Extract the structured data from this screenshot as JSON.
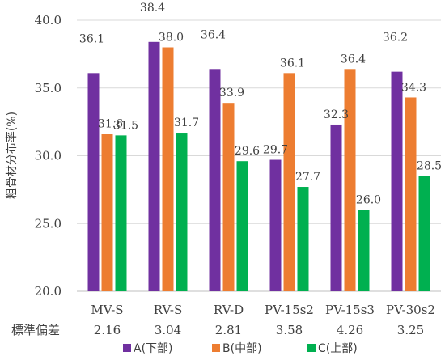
{
  "chart_data": {
    "type": "bar",
    "title": "",
    "xlabel": "",
    "ylabel": "粗骨材分布率(%)",
    "ylim": [
      20.0,
      40.0
    ],
    "yticks": [
      "20.0",
      "25.0",
      "30.0",
      "35.0",
      "40.0"
    ],
    "ytick_values": [
      20,
      25,
      30,
      35,
      40
    ],
    "categories": [
      "MV-S",
      "RV-S",
      "RV-D",
      "PV-15s2",
      "PV-15s3",
      "PV-30s2"
    ],
    "sub_row_title": "標準偏差",
    "sub_row_values": [
      "2.16",
      "3.04",
      "2.81",
      "3.58",
      "4.26",
      "3.25"
    ],
    "series": [
      {
        "name": "A(下部)",
        "color": "#7030A0",
        "values": [
          36.1,
          38.4,
          36.4,
          29.7,
          32.3,
          36.2
        ],
        "labels": [
          "36.1",
          "38.4",
          "36.4",
          "29.7",
          "32.3",
          "36.2"
        ]
      },
      {
        "name": "B(中部)",
        "color": "#ED7D31",
        "values": [
          31.6,
          38.0,
          33.9,
          36.1,
          36.4,
          34.3
        ],
        "labels": [
          "31.6",
          "38.0",
          "33.9",
          "36.1",
          "36.4",
          "34.3"
        ]
      },
      {
        "name": "C(上部)",
        "color": "#00B050",
        "values": [
          31.5,
          31.7,
          29.6,
          27.7,
          26.0,
          28.5
        ],
        "labels": [
          "31.5",
          "31.7",
          "29.6",
          "27.7",
          "26.0",
          "28.5"
        ]
      }
    ],
    "grid": true,
    "legend_position": "bottom"
  }
}
